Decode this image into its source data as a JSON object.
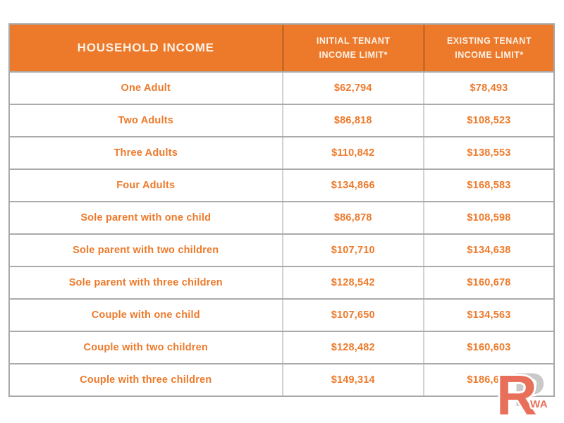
{
  "colors": {
    "accent_orange": "#ED7A2B",
    "header_text": "#FBF2E7",
    "grid_line": "#ABABAB",
    "grid_line_light": "#D2D2D2",
    "header_divider": "#C96A24",
    "watermark_coral": "#E8705A",
    "watermark_gray": "#C9C9C9"
  },
  "table": {
    "header": {
      "household": "HOUSEHOLD INCOME",
      "initial_lines": [
        "INITIAL TENANT",
        "INCOME LIMIT*"
      ],
      "existing_lines": [
        "EXISTING TENANT",
        "INCOME LIMIT*"
      ]
    },
    "rows": [
      {
        "household": "One Adult",
        "initial_limit": "$62,794",
        "existing_limit": "$78,493"
      },
      {
        "household": "Two Adults",
        "initial_limit": "$86,818",
        "existing_limit": "$108,523"
      },
      {
        "household": "Three Adults",
        "initial_limit": "$110,842",
        "existing_limit": "$138,553"
      },
      {
        "household": "Four Adults",
        "initial_limit": "$134,866",
        "existing_limit": "$168,583"
      },
      {
        "household": "Sole parent with one child",
        "initial_limit": "$86,878",
        "existing_limit": "$108,598"
      },
      {
        "household": "Sole parent with two children",
        "initial_limit": "$107,710",
        "existing_limit": "$134,638"
      },
      {
        "household": "Sole parent with three children",
        "initial_limit": "$128,542",
        "existing_limit": "$160,678"
      },
      {
        "household": "Couple with one child",
        "initial_limit": "$107,650",
        "existing_limit": "$134,563"
      },
      {
        "household": "Couple with two children",
        "initial_limit": "$128,482",
        "existing_limit": "$160,603"
      },
      {
        "household": "Couple with three children",
        "initial_limit": "$149,314",
        "existing_limit": "$186,643"
      }
    ]
  },
  "watermark": {
    "letter_r": "R",
    "letter_p": "P",
    "small_text": "WA"
  },
  "chart_data": {
    "type": "table",
    "title": "",
    "columns": [
      "HOUSEHOLD INCOME",
      "INITIAL TENANT INCOME LIMIT*",
      "EXISTING TENANT INCOME LIMIT*"
    ],
    "rows": [
      [
        "One Adult",
        "$62,794",
        "$78,493"
      ],
      [
        "Two Adults",
        "$86,818",
        "$108,523"
      ],
      [
        "Three Adults",
        "$110,842",
        "$138,553"
      ],
      [
        "Four Adults",
        "$134,866",
        "$168,583"
      ],
      [
        "Sole parent with one child",
        "$86,878",
        "$108,598"
      ],
      [
        "Sole parent with two children",
        "$107,710",
        "$134,638"
      ],
      [
        "Sole parent with three children",
        "$128,542",
        "$160,678"
      ],
      [
        "Couple with one child",
        "$107,650",
        "$134,563"
      ],
      [
        "Couple with two children",
        "$128,482",
        "$160,603"
      ],
      [
        "Couple with three children",
        "$149,314",
        "$186,643"
      ]
    ],
    "values_numeric": {
      "initial_tenant_income_limit": [
        62794,
        86818,
        110842,
        134866,
        86878,
        107710,
        128542,
        107650,
        128482,
        149314
      ],
      "existing_tenant_income_limit": [
        78493,
        108523,
        138553,
        168583,
        108598,
        134638,
        160678,
        134563,
        160603,
        186643
      ]
    }
  }
}
